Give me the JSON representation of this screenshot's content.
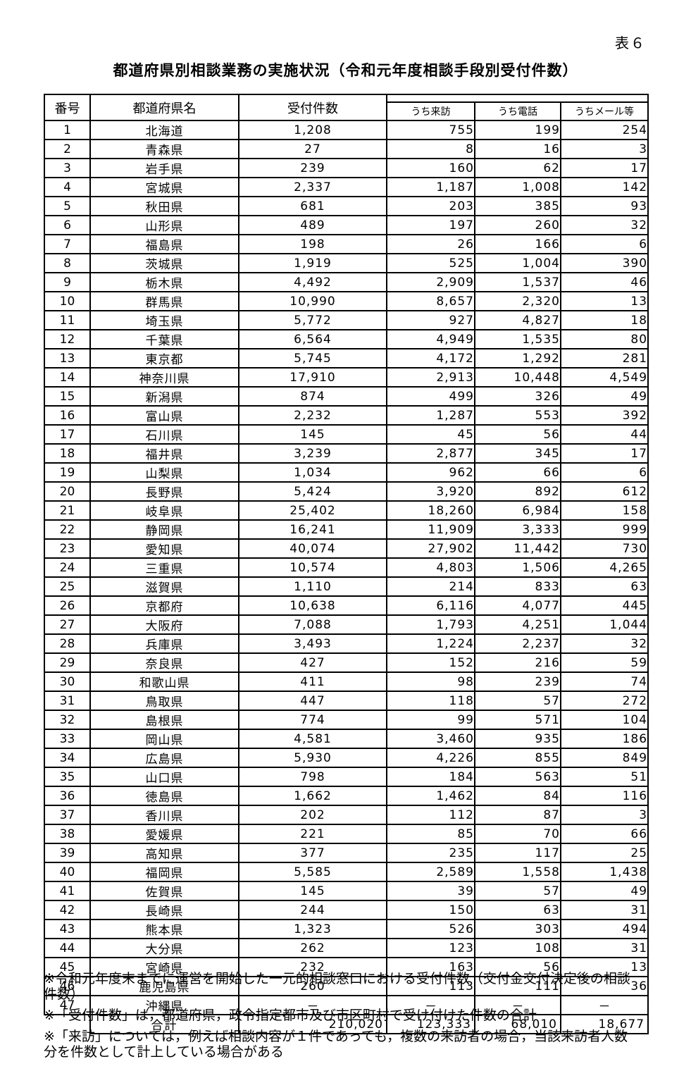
{
  "page": {
    "table_label": "表６",
    "title": "都道府県別相談業務の実施状況（令和元年度相談手段別受付件数）"
  },
  "table": {
    "headers": {
      "number": "番号",
      "prefecture": "都道府県名",
      "total": "受付件数",
      "sub": [
        "うち来訪",
        "うち電話",
        "うちメール等"
      ]
    },
    "rows": [
      {
        "no": "1",
        "name": "北海道",
        "total": "1,208",
        "visit": "755",
        "phone": "199",
        "mail": "254"
      },
      {
        "no": "2",
        "name": "青森県",
        "total": "27",
        "visit": "8",
        "phone": "16",
        "mail": "3"
      },
      {
        "no": "3",
        "name": "岩手県",
        "total": "239",
        "visit": "160",
        "phone": "62",
        "mail": "17"
      },
      {
        "no": "4",
        "name": "宮城県",
        "total": "2,337",
        "visit": "1,187",
        "phone": "1,008",
        "mail": "142"
      },
      {
        "no": "5",
        "name": "秋田県",
        "total": "681",
        "visit": "203",
        "phone": "385",
        "mail": "93"
      },
      {
        "no": "6",
        "name": "山形県",
        "total": "489",
        "visit": "197",
        "phone": "260",
        "mail": "32"
      },
      {
        "no": "7",
        "name": "福島県",
        "total": "198",
        "visit": "26",
        "phone": "166",
        "mail": "6"
      },
      {
        "no": "8",
        "name": "茨城県",
        "total": "1,919",
        "visit": "525",
        "phone": "1,004",
        "mail": "390"
      },
      {
        "no": "9",
        "name": "栃木県",
        "total": "4,492",
        "visit": "2,909",
        "phone": "1,537",
        "mail": "46"
      },
      {
        "no": "10",
        "name": "群馬県",
        "total": "10,990",
        "visit": "8,657",
        "phone": "2,320",
        "mail": "13"
      },
      {
        "no": "11",
        "name": "埼玉県",
        "total": "5,772",
        "visit": "927",
        "phone": "4,827",
        "mail": "18"
      },
      {
        "no": "12",
        "name": "千葉県",
        "total": "6,564",
        "visit": "4,949",
        "phone": "1,535",
        "mail": "80"
      },
      {
        "no": "13",
        "name": "東京都",
        "total": "5,745",
        "visit": "4,172",
        "phone": "1,292",
        "mail": "281"
      },
      {
        "no": "14",
        "name": "神奈川県",
        "total": "17,910",
        "visit": "2,913",
        "phone": "10,448",
        "mail": "4,549"
      },
      {
        "no": "15",
        "name": "新潟県",
        "total": "874",
        "visit": "499",
        "phone": "326",
        "mail": "49"
      },
      {
        "no": "16",
        "name": "富山県",
        "total": "2,232",
        "visit": "1,287",
        "phone": "553",
        "mail": "392"
      },
      {
        "no": "17",
        "name": "石川県",
        "total": "145",
        "visit": "45",
        "phone": "56",
        "mail": "44"
      },
      {
        "no": "18",
        "name": "福井県",
        "total": "3,239",
        "visit": "2,877",
        "phone": "345",
        "mail": "17"
      },
      {
        "no": "19",
        "name": "山梨県",
        "total": "1,034",
        "visit": "962",
        "phone": "66",
        "mail": "6"
      },
      {
        "no": "20",
        "name": "長野県",
        "total": "5,424",
        "visit": "3,920",
        "phone": "892",
        "mail": "612"
      },
      {
        "no": "21",
        "name": "岐阜県",
        "total": "25,402",
        "visit": "18,260",
        "phone": "6,984",
        "mail": "158"
      },
      {
        "no": "22",
        "name": "静岡県",
        "total": "16,241",
        "visit": "11,909",
        "phone": "3,333",
        "mail": "999"
      },
      {
        "no": "23",
        "name": "愛知県",
        "total": "40,074",
        "visit": "27,902",
        "phone": "11,442",
        "mail": "730"
      },
      {
        "no": "24",
        "name": "三重県",
        "total": "10,574",
        "visit": "4,803",
        "phone": "1,506",
        "mail": "4,265"
      },
      {
        "no": "25",
        "name": "滋賀県",
        "total": "1,110",
        "visit": "214",
        "phone": "833",
        "mail": "63"
      },
      {
        "no": "26",
        "name": "京都府",
        "total": "10,638",
        "visit": "6,116",
        "phone": "4,077",
        "mail": "445"
      },
      {
        "no": "27",
        "name": "大阪府",
        "total": "7,088",
        "visit": "1,793",
        "phone": "4,251",
        "mail": "1,044"
      },
      {
        "no": "28",
        "name": "兵庫県",
        "total": "3,493",
        "visit": "1,224",
        "phone": "2,237",
        "mail": "32"
      },
      {
        "no": "29",
        "name": "奈良県",
        "total": "427",
        "visit": "152",
        "phone": "216",
        "mail": "59"
      },
      {
        "no": "30",
        "name": "和歌山県",
        "total": "411",
        "visit": "98",
        "phone": "239",
        "mail": "74"
      },
      {
        "no": "31",
        "name": "鳥取県",
        "total": "447",
        "visit": "118",
        "phone": "57",
        "mail": "272"
      },
      {
        "no": "32",
        "name": "島根県",
        "total": "774",
        "visit": "99",
        "phone": "571",
        "mail": "104"
      },
      {
        "no": "33",
        "name": "岡山県",
        "total": "4,581",
        "visit": "3,460",
        "phone": "935",
        "mail": "186"
      },
      {
        "no": "34",
        "name": "広島県",
        "total": "5,930",
        "visit": "4,226",
        "phone": "855",
        "mail": "849"
      },
      {
        "no": "35",
        "name": "山口県",
        "total": "798",
        "visit": "184",
        "phone": "563",
        "mail": "51"
      },
      {
        "no": "36",
        "name": "徳島県",
        "total": "1,662",
        "visit": "1,462",
        "phone": "84",
        "mail": "116"
      },
      {
        "no": "37",
        "name": "香川県",
        "total": "202",
        "visit": "112",
        "phone": "87",
        "mail": "3"
      },
      {
        "no": "38",
        "name": "愛媛県",
        "total": "221",
        "visit": "85",
        "phone": "70",
        "mail": "66"
      },
      {
        "no": "39",
        "name": "高知県",
        "total": "377",
        "visit": "235",
        "phone": "117",
        "mail": "25"
      },
      {
        "no": "40",
        "name": "福岡県",
        "total": "5,585",
        "visit": "2,589",
        "phone": "1,558",
        "mail": "1,438"
      },
      {
        "no": "41",
        "name": "佐賀県",
        "total": "145",
        "visit": "39",
        "phone": "57",
        "mail": "49"
      },
      {
        "no": "42",
        "name": "長崎県",
        "total": "244",
        "visit": "150",
        "phone": "63",
        "mail": "31"
      },
      {
        "no": "43",
        "name": "熊本県",
        "total": "1,323",
        "visit": "526",
        "phone": "303",
        "mail": "494"
      },
      {
        "no": "44",
        "name": "大分県",
        "total": "262",
        "visit": "123",
        "phone": "108",
        "mail": "31"
      },
      {
        "no": "45",
        "name": "宮崎県",
        "total": "232",
        "visit": "163",
        "phone": "56",
        "mail": "13"
      },
      {
        "no": "46",
        "name": "鹿児島県",
        "total": "260",
        "visit": "113",
        "phone": "111",
        "mail": "36"
      },
      {
        "no": "47",
        "name": "沖縄県",
        "total": "－",
        "visit": "－",
        "phone": "－",
        "mail": "－"
      }
    ],
    "total_row": {
      "label": "合計",
      "total": "210,020",
      "visit": "123,333",
      "phone": "68,010",
      "mail": "18,677"
    }
  },
  "footnotes": [
    [
      "※令和元年度末までに運営を開始した一元的相談窓口における受付件数（交付金交付決定後の相談",
      "件数）"
    ],
    [
      "※「受付件数」は，都道府県，政令指定都市及び市区町村で受け付けた件数の合計"
    ],
    [
      "※「来訪」については，例えば相談内容が１件であっても，複数の来訪者の場合，当該来訪者人数",
      "分を件数として計上している場合がある"
    ]
  ]
}
